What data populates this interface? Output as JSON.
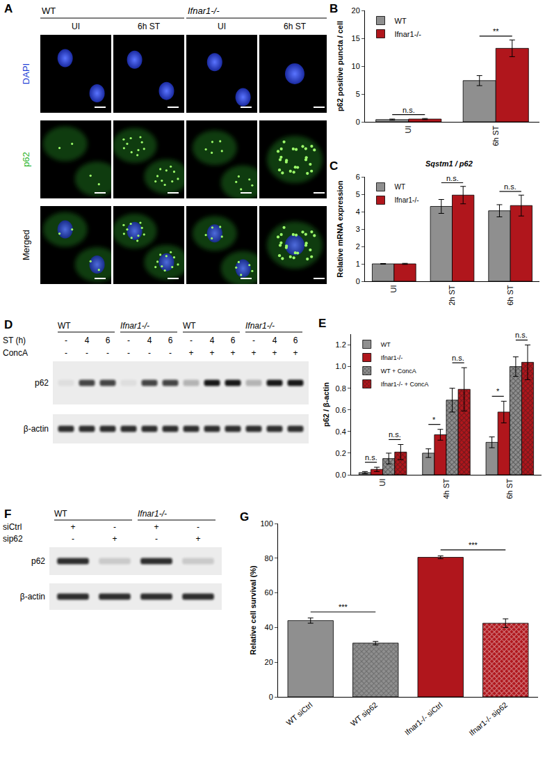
{
  "panel_letters": [
    "A",
    "B",
    "C",
    "D",
    "E",
    "F",
    "G"
  ],
  "panel_A": {
    "groups": [
      "WT",
      "Ifnar1-/-"
    ],
    "columns": [
      "UI",
      "6h ST",
      "UI",
      "6h ST"
    ],
    "rows": [
      "DAPI",
      "p62",
      "Merged"
    ]
  },
  "panel_D": {
    "groups": [
      "WT",
      "Ifnar1-/-",
      "WT",
      "Ifnar1-/-"
    ],
    "conditions": [
      {
        "name": "ST (h)",
        "values": [
          "-",
          "4",
          "6",
          "-",
          "4",
          "6",
          "-",
          "4",
          "6",
          "-",
          "4",
          "6"
        ]
      },
      {
        "name": "ConcA",
        "values": [
          "-",
          "-",
          "-",
          "-",
          "-",
          "-",
          "+",
          "+",
          "+",
          "+",
          "+",
          "+"
        ]
      }
    ],
    "bands": [
      "p62",
      "β-actin"
    ]
  },
  "panel_F": {
    "groups": [
      "WT",
      "Ifnar1-/-"
    ],
    "conditions": [
      {
        "name": "siCtrl",
        "values": [
          "+",
          "-",
          "+",
          "-"
        ]
      },
      {
        "name": "sip62",
        "values": [
          "-",
          "+",
          "-",
          "+"
        ]
      }
    ],
    "bands": [
      "p62",
      "β-actin"
    ]
  },
  "chart_data": [
    {
      "type": "bar",
      "categories": [
        "UI",
        "6h ST"
      ],
      "series": [
        {
          "name": "WT",
          "color": "#8f8f8f",
          "values": [
            0.4,
            7.4
          ],
          "errors": [
            0.1,
            0.9
          ]
        },
        {
          "name": "Ifnar1-/-",
          "color": "#b0161c",
          "values": [
            0.5,
            13.2
          ],
          "errors": [
            0.1,
            1.5
          ]
        }
      ],
      "ylim": [
        0,
        20
      ],
      "yticks": [
        0,
        5,
        10,
        15,
        20
      ],
      "y_label": "p62 positive puncta / cell",
      "legend": "upper left",
      "annotations": [
        {
          "text": "n.s.",
          "category": "UI"
        },
        {
          "text": "**",
          "category": "6h ST"
        }
      ]
    },
    {
      "type": "bar",
      "title": "Sqstm1 / p62",
      "categories": [
        "UI",
        "2h ST",
        "6h ST"
      ],
      "series": [
        {
          "name": "WT",
          "color": "#8f8f8f",
          "values": [
            1.0,
            4.3,
            4.05
          ],
          "errors": [
            0.02,
            0.4,
            0.35
          ]
        },
        {
          "name": "Ifnar1-/-",
          "color": "#b0161c",
          "values": [
            1.0,
            4.95,
            4.35
          ],
          "errors": [
            0.03,
            0.5,
            0.6
          ]
        }
      ],
      "ylim": [
        0,
        6
      ],
      "yticks": [
        0,
        1,
        2,
        3,
        4,
        5,
        6
      ],
      "y_label": "Relative mRNA expression",
      "legend": "upper left",
      "annotations": [
        {
          "text": "n.s.",
          "category": "2h ST"
        },
        {
          "text": "n.s.",
          "category": "6h ST"
        }
      ]
    },
    {
      "type": "bar",
      "categories": [
        "UI",
        "4h ST",
        "6h ST"
      ],
      "series": [
        {
          "name": "WT",
          "color": "#8f8f8f",
          "values": [
            0.02,
            0.2,
            0.3
          ],
          "errors": [
            0.01,
            0.04,
            0.05
          ]
        },
        {
          "name": "Ifnar1-/-",
          "color": "#b0161c",
          "values": [
            0.05,
            0.37,
            0.58
          ],
          "errors": [
            0.02,
            0.05,
            0.1
          ]
        },
        {
          "name": "WT + ConcA",
          "color": "#8f8f8f",
          "marker": "hatched",
          "values": [
            0.15,
            0.69,
            1.0
          ],
          "errors": [
            0.05,
            0.11,
            0.09
          ]
        },
        {
          "name": "Ifnar1-/- + ConcA",
          "color": "#b0161c",
          "marker": "hatched",
          "values": [
            0.21,
            0.79,
            1.04
          ],
          "errors": [
            0.07,
            0.2,
            0.16
          ]
        }
      ],
      "ylim": [
        0,
        1.3
      ],
      "yticks": [
        {
          "value": 0,
          "label": "0.0"
        },
        0.2,
        0.4,
        0.6,
        0.8,
        {
          "value": 1,
          "label": "1.0"
        },
        1.2
      ],
      "y_label": "p62 / β-actin",
      "legend": "upper left",
      "annotations": [
        {
          "text": "n.s.",
          "category": "UI",
          "series": [
            "WT",
            "Ifnar1-/-"
          ]
        },
        {
          "text": "n.s.",
          "category": "UI",
          "series": [
            "WT + ConcA",
            "Ifnar1-/- + ConcA"
          ]
        },
        {
          "text": "*",
          "category": "4h ST",
          "series": [
            "WT",
            "Ifnar1-/-"
          ]
        },
        {
          "text": "n.s.",
          "category": "4h ST",
          "series": [
            "WT + ConcA",
            "Ifnar1-/- + ConcA"
          ]
        },
        {
          "text": "*",
          "category": "6h ST",
          "series": [
            "WT",
            "Ifnar1-/-"
          ]
        },
        {
          "text": "n.s.",
          "category": "6h ST",
          "series": [
            "WT + ConcA",
            "Ifnar1-/- + ConcA"
          ]
        }
      ]
    },
    {
      "type": "bar",
      "categories": [
        "WT siCtrl",
        "WT sip62",
        "Ifnar1-/- siCtrl",
        "Ifnar1-/- sip62"
      ],
      "series": [
        {
          "colors": [
            "#8f8f8f",
            null,
            "#b0161c",
            null
          ],
          "values": [
            44,
            null,
            80.5,
            null
          ],
          "errors": [
            1.5,
            null,
            0.8,
            null
          ]
        },
        {
          "colors": [
            null,
            "#8f8f8f",
            null,
            "#b0161c"
          ],
          "marker": "hatched",
          "values": [
            null,
            31,
            null,
            42.5
          ],
          "errors": [
            null,
            1,
            null,
            2.5
          ]
        }
      ],
      "ylim": [
        0,
        100
      ],
      "yticks": [
        0,
        20,
        40,
        60,
        80,
        100
      ],
      "y_label": "Relative cell survival (%)",
      "annotations": [
        {
          "text": "***",
          "categories": [
            "WT siCtrl",
            "WT sip62"
          ]
        },
        {
          "text": "***",
          "categories": [
            "Ifnar1-/- siCtrl",
            "Ifnar1-/- sip62"
          ]
        }
      ]
    }
  ]
}
